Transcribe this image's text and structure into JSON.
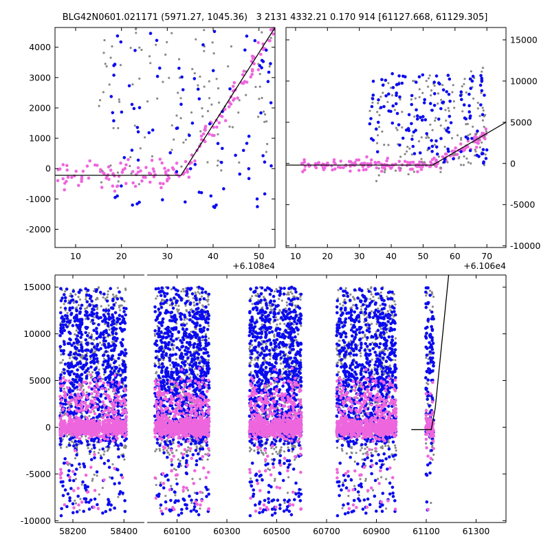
{
  "figure_title": "BLG42N0601.021171 (5971.27, 1045.36)   3 2131 4332.21 0.170 914 [61127.668, 61129.305]",
  "colors": {
    "grey": "#888888",
    "blue": "#0b0bf0",
    "pink": "#ee66dd",
    "model": "#000000"
  },
  "chart_data": [
    {
      "id": "zoom-left",
      "type": "scatter",
      "offset_label": "+6.108e4",
      "xlim": [
        5.5,
        53.5
      ],
      "ylim": [
        -2600,
        4650
      ],
      "xticks": [
        10,
        20,
        30,
        40,
        50
      ],
      "yticks": [
        -2000,
        -1000,
        0,
        1000,
        2000,
        3000,
        4000
      ],
      "ytick_side": "left",
      "model_line": {
        "x": [
          5.5,
          33,
          53.5
        ],
        "y": [
          -220,
          -220,
          4650
        ]
      }
    },
    {
      "id": "zoom-right",
      "type": "scatter",
      "offset_label": "+6.106e4",
      "xlim": [
        7,
        76
      ],
      "ylim": [
        -10200,
        16500
      ],
      "xticks": [
        10,
        20,
        30,
        40,
        50,
        60,
        70
      ],
      "yticks": [
        -10000,
        -5000,
        0,
        5000,
        10000,
        15000
      ],
      "ytick_side": "right",
      "model_line": {
        "x": [
          7,
          53,
          76
        ],
        "y": [
          -200,
          -200,
          5000
        ]
      }
    },
    {
      "id": "full-light-curve",
      "type": "scatter",
      "ylim": [
        -10200,
        16300
      ],
      "yticks": [
        -10000,
        -5000,
        0,
        5000,
        10000,
        15000
      ],
      "ytick_side": "left",
      "segments": [
        {
          "xlim": [
            58130,
            58480
          ],
          "xticks": [
            58200,
            58400
          ]
        },
        {
          "xlim": [
            59980,
            61420
          ],
          "xticks": [
            60100,
            60300,
            60500,
            60700,
            60900,
            61100,
            61300
          ]
        }
      ],
      "seasons": [
        {
          "x0": 58150,
          "x1": 58410
        },
        {
          "x0": 60010,
          "x1": 60230
        },
        {
          "x0": 60390,
          "x1": 60600
        },
        {
          "x0": 60740,
          "x1": 60980
        },
        {
          "x0": 61095,
          "x1": 61130
        }
      ],
      "model_line": {
        "x": [
          61040,
          61120,
          61136,
          61190
        ],
        "y": [
          -250,
          -250,
          2000,
          16300
        ]
      }
    }
  ]
}
